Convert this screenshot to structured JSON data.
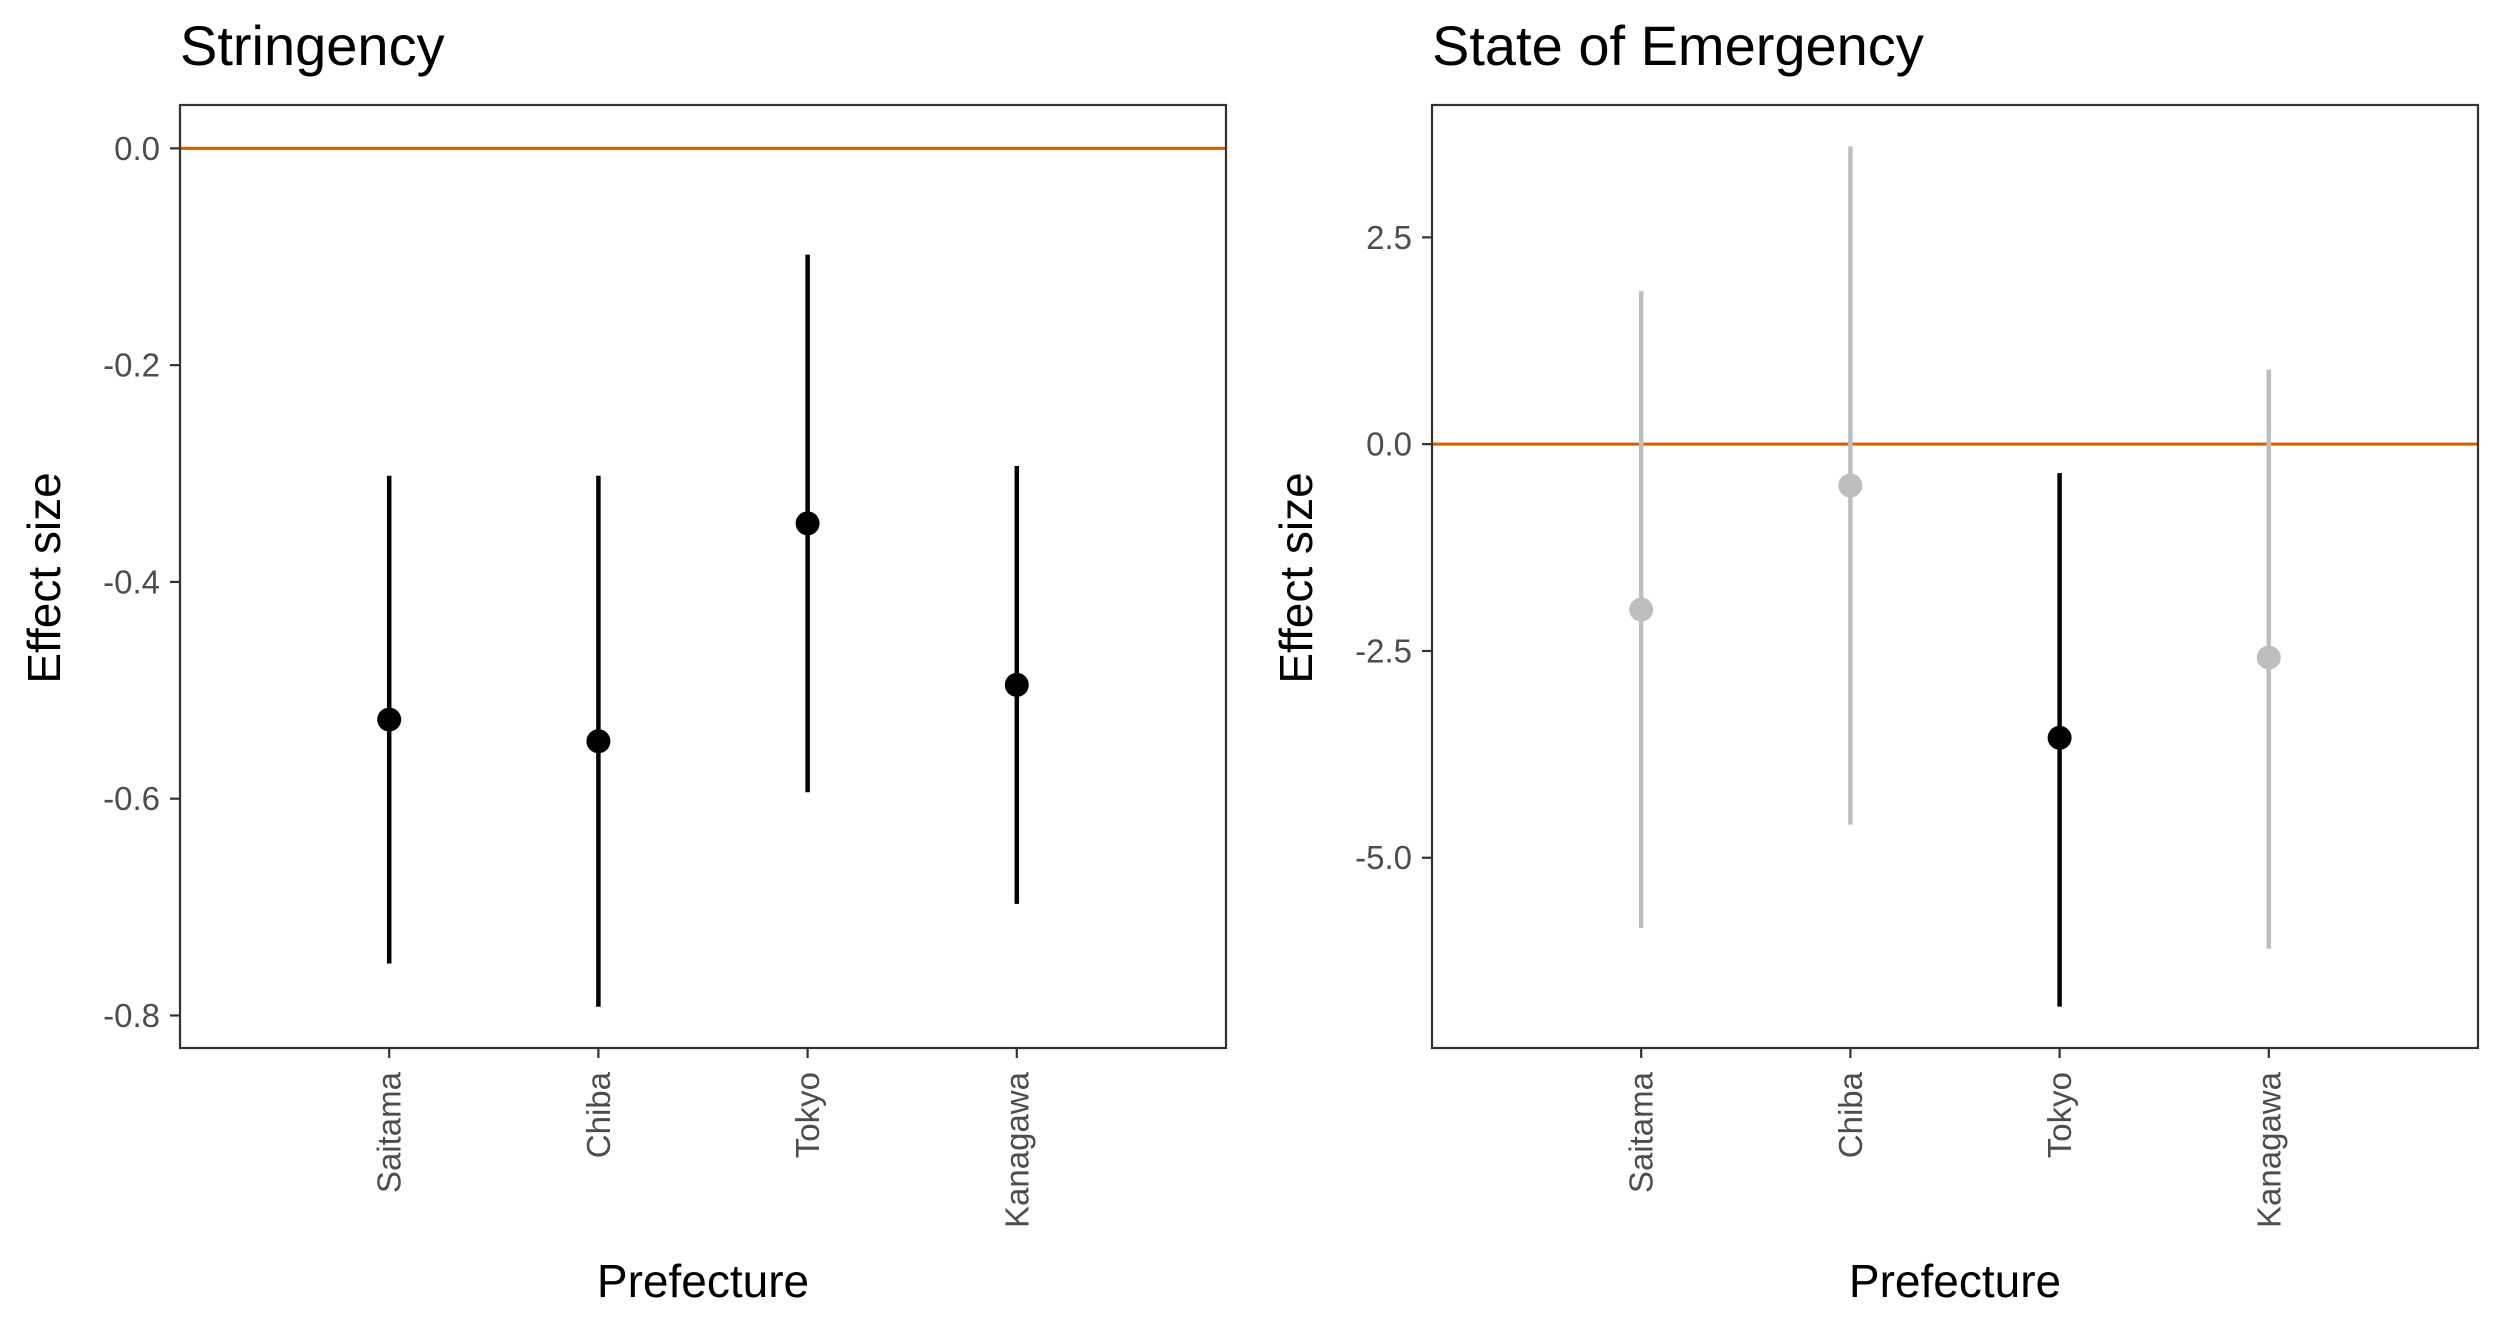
{
  "chart_data": [
    {
      "type": "scatter",
      "title": "Stringency",
      "xlabel": "Prefecture",
      "ylabel": "Effect size",
      "categories": [
        "Saitama",
        "Chiba",
        "Tokyo",
        "Kanagawa"
      ],
      "estimates": [
        -0.527,
        -0.547,
        -0.346,
        -0.495
      ],
      "ci_lower": [
        -0.752,
        -0.792,
        -0.594,
        -0.697
      ],
      "ci_upper": [
        -0.302,
        -0.302,
        -0.098,
        -0.293
      ],
      "significant": [
        true,
        true,
        true,
        true
      ],
      "ylim": [
        -0.83,
        0.04
      ],
      "yticks": [
        0.0,
        -0.2,
        -0.4,
        -0.6,
        -0.8
      ],
      "ytick_labels": [
        "0.0",
        "-0.2",
        "-0.4",
        "-0.6",
        "-0.8"
      ],
      "reference_line": 0,
      "grid": false
    },
    {
      "type": "scatter",
      "title": "State of Emergency",
      "xlabel": "Prefecture",
      "ylabel": "Effect size",
      "categories": [
        "Saitama",
        "Chiba",
        "Tokyo",
        "Kanagawa"
      ],
      "estimates": [
        -2.0,
        -0.5,
        -3.55,
        -2.58
      ],
      "ci_lower": [
        -5.85,
        -4.6,
        -6.8,
        -6.1
      ],
      "ci_upper": [
        1.85,
        3.6,
        -0.35,
        0.9
      ],
      "significant": [
        false,
        false,
        true,
        false
      ],
      "ylim": [
        -7.3,
        4.1
      ],
      "yticks": [
        2.5,
        0.0,
        -2.5,
        -5.0
      ],
      "ytick_labels": [
        "2.5",
        "0.0",
        "-2.5",
        "-5.0"
      ],
      "reference_line": 0,
      "grid": false
    }
  ],
  "colors": {
    "significant": "#000000",
    "not_significant": "#bebebe",
    "reference_line": "#d55e00",
    "panel_border": "#333333",
    "tick_label": "#4d4d4d"
  }
}
